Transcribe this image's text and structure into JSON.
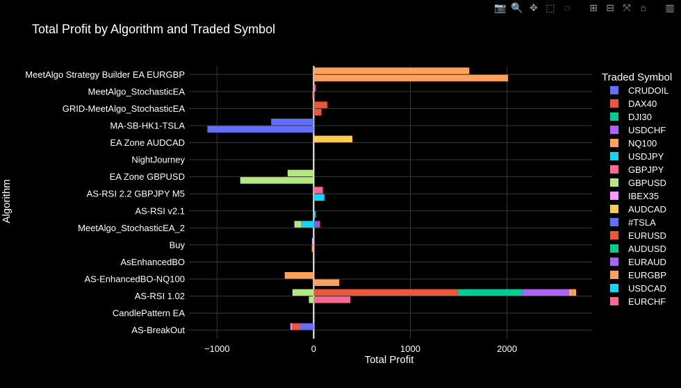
{
  "chart_data": {
    "type": "bar",
    "orientation": "horizontal",
    "barmode": "relative",
    "title": "Total Profit by Algorithm and Traded Symbol",
    "xlabel": "Total Profit",
    "ylabel": "Algorithm",
    "xlim": [
      -1290,
      2880
    ],
    "xticks": [
      -1000,
      0,
      1000,
      2000
    ],
    "xtick_labels": [
      "−1000",
      "0",
      "1000",
      "2000"
    ],
    "grid": true,
    "legend_title": "Traded Symbol",
    "legend_position": "right",
    "categories": [
      "MeetAlgo Strategy Builder EA EURGBP",
      "MeetAlgo_StochasticEA",
      "GRID-MeetAlgo_StochasticEA",
      "MA-SB-HK1-TSLA",
      "EA Zone AUDCAD",
      "NightJourney",
      "EA Zone GBPUSD",
      "AS-RSI 2.2 GBPJPY M5",
      "AS-RSI v2.1",
      "MeetAlgo_StochasticEA_2",
      "Buy",
      "AsEnhancedBO",
      "AS-EnhancedBO-NQ100",
      "AS-RSI 1.02",
      "CandlePattern EA",
      "AS-BreakOut"
    ],
    "series": [
      {
        "name": "CRUDOIL",
        "color": "#636efa",
        "values": [
          [
            0,
            0
          ],
          [
            0,
            0
          ],
          [
            0,
            0
          ],
          [
            0,
            0
          ],
          [
            0,
            0
          ],
          [
            0,
            0
          ],
          [
            0,
            0
          ],
          [
            0,
            0
          ],
          [
            0,
            0
          ],
          [
            0,
            0
          ],
          [
            0,
            0
          ],
          [
            0,
            0
          ],
          [
            0,
            0
          ],
          [
            0,
            0
          ],
          [
            0,
            0
          ],
          [
            -140,
            0
          ]
        ]
      },
      {
        "name": "DAX40",
        "color": "#ef553b",
        "values": [
          [
            0,
            0
          ],
          [
            0,
            -15
          ],
          [
            140,
            80
          ],
          [
            0,
            0
          ],
          [
            0,
            0
          ],
          [
            0,
            0
          ],
          [
            0,
            0
          ],
          [
            0,
            0
          ],
          [
            0,
            0
          ],
          [
            0,
            0
          ],
          [
            0,
            0
          ],
          [
            0,
            0
          ],
          [
            0,
            0
          ],
          [
            1490,
            0
          ],
          [
            0,
            0
          ],
          [
            -85,
            0
          ]
        ]
      },
      {
        "name": "DJI30",
        "color": "#00cc96",
        "values": [
          [
            0,
            0
          ],
          [
            0,
            0
          ],
          [
            0,
            0
          ],
          [
            0,
            0
          ],
          [
            0,
            0
          ],
          [
            0,
            0
          ],
          [
            0,
            0
          ],
          [
            0,
            0
          ],
          [
            0,
            0
          ],
          [
            0,
            0
          ],
          [
            0,
            0
          ],
          [
            0,
            0
          ],
          [
            0,
            0
          ],
          [
            670,
            0
          ],
          [
            0,
            0
          ],
          [
            0,
            0
          ]
        ]
      },
      {
        "name": "USDCHF",
        "color": "#ab63fa",
        "values": [
          [
            0,
            0
          ],
          [
            0,
            0
          ],
          [
            0,
            0
          ],
          [
            0,
            0
          ],
          [
            0,
            0
          ],
          [
            0,
            0
          ],
          [
            0,
            0
          ],
          [
            0,
            0
          ],
          [
            0,
            0
          ],
          [
            0,
            0
          ],
          [
            0,
            0
          ],
          [
            0,
            0
          ],
          [
            0,
            0
          ],
          [
            480,
            0
          ],
          [
            0,
            0
          ],
          [
            0,
            0
          ]
        ]
      },
      {
        "name": "NQ100",
        "color": "#ffa15a",
        "values": [
          [
            1610,
            2010
          ],
          [
            0,
            0
          ],
          [
            0,
            0
          ],
          [
            0,
            0
          ],
          [
            0,
            0
          ],
          [
            0,
            0
          ],
          [
            0,
            0
          ],
          [
            0,
            0
          ],
          [
            0,
            0
          ],
          [
            0,
            0
          ],
          [
            0,
            -20
          ],
          [
            0,
            0
          ],
          [
            -300,
            265
          ],
          [
            40,
            0
          ],
          [
            0,
            0
          ],
          [
            0,
            0
          ]
        ]
      },
      {
        "name": "USDJPY",
        "color": "#19d3f3",
        "values": [
          [
            0,
            0
          ],
          [
            0,
            0
          ],
          [
            0,
            0
          ],
          [
            0,
            0
          ],
          [
            0,
            0
          ],
          [
            0,
            0
          ],
          [
            0,
            0
          ],
          [
            0,
            0
          ],
          [
            0,
            0
          ],
          [
            0,
            0
          ],
          [
            0,
            0
          ],
          [
            0,
            0
          ],
          [
            0,
            0
          ],
          [
            0,
            0
          ],
          [
            0,
            0
          ],
          [
            0,
            0
          ]
        ]
      },
      {
        "name": "GBPJPY",
        "color": "#ff6692",
        "values": [
          [
            0,
            0
          ],
          [
            20,
            0
          ],
          [
            0,
            0
          ],
          [
            0,
            0
          ],
          [
            0,
            0
          ],
          [
            0,
            0
          ],
          [
            0,
            0
          ],
          [
            95,
            0
          ],
          [
            0,
            0
          ],
          [
            0,
            0
          ],
          [
            0,
            0
          ],
          [
            0,
            0
          ],
          [
            0,
            0
          ],
          [
            0,
            0
          ],
          [
            0,
            0
          ],
          [
            0,
            0
          ]
        ]
      },
      {
        "name": "GBPUSD",
        "color": "#b6e880",
        "values": [
          [
            0,
            0
          ],
          [
            0,
            0
          ],
          [
            0,
            0
          ],
          [
            0,
            0
          ],
          [
            0,
            0
          ],
          [
            0,
            0
          ],
          [
            -270,
            -760
          ],
          [
            0,
            0
          ],
          [
            0,
            0
          ],
          [
            0,
            0
          ],
          [
            0,
            0
          ],
          [
            0,
            0
          ],
          [
            0,
            0
          ],
          [
            -220,
            -50
          ],
          [
            0,
            0
          ],
          [
            0,
            0
          ]
        ]
      },
      {
        "name": "IBEX35",
        "color": "#ff97ff",
        "values": [
          [
            0,
            0
          ],
          [
            0,
            0
          ],
          [
            0,
            0
          ],
          [
            0,
            0
          ],
          [
            0,
            0
          ],
          [
            0,
            0
          ],
          [
            0,
            0
          ],
          [
            0,
            0
          ],
          [
            0,
            0
          ],
          [
            0,
            0
          ],
          [
            -18,
            0
          ],
          [
            0,
            0
          ],
          [
            0,
            0
          ],
          [
            0,
            0
          ],
          [
            0,
            0
          ],
          [
            -15,
            0
          ]
        ]
      },
      {
        "name": "AUDCAD",
        "color": "#fecb52",
        "values": [
          [
            0,
            0
          ],
          [
            0,
            0
          ],
          [
            0,
            0
          ],
          [
            0,
            0
          ],
          [
            400,
            0
          ],
          [
            0,
            0
          ],
          [
            0,
            0
          ],
          [
            0,
            0
          ],
          [
            0,
            0
          ],
          [
            0,
            0
          ],
          [
            0,
            0
          ],
          [
            0,
            0
          ],
          [
            0,
            0
          ],
          [
            0,
            0
          ],
          [
            0,
            0
          ],
          [
            0,
            0
          ]
        ]
      },
      {
        "name": "#TSLA",
        "color": "#636efa",
        "values": [
          [
            0,
            0
          ],
          [
            0,
            0
          ],
          [
            0,
            0
          ],
          [
            -440,
            -1100
          ],
          [
            0,
            0
          ],
          [
            0,
            0
          ],
          [
            0,
            0
          ],
          [
            0,
            0
          ],
          [
            0,
            0
          ],
          [
            45,
            0
          ],
          [
            0,
            0
          ],
          [
            0,
            0
          ],
          [
            0,
            0
          ],
          [
            0,
            0
          ],
          [
            0,
            0
          ],
          [
            0,
            0
          ]
        ]
      },
      {
        "name": "EURUSD",
        "color": "#ef553b",
        "values": [
          [
            0,
            0
          ],
          [
            0,
            0
          ],
          [
            0,
            0
          ],
          [
            0,
            0
          ],
          [
            0,
            0
          ],
          [
            0,
            0
          ],
          [
            0,
            0
          ],
          [
            0,
            0
          ],
          [
            0,
            0
          ],
          [
            20,
            0
          ],
          [
            0,
            0
          ],
          [
            0,
            0
          ],
          [
            0,
            0
          ],
          [
            0,
            0
          ],
          [
            0,
            0
          ],
          [
            0,
            0
          ]
        ]
      },
      {
        "name": "AUDUSD",
        "color": "#00cc96",
        "values": [
          [
            0,
            0
          ],
          [
            0,
            0
          ],
          [
            0,
            0
          ],
          [
            0,
            0
          ],
          [
            0,
            0
          ],
          [
            0,
            0
          ],
          [
            0,
            0
          ],
          [
            0,
            0
          ],
          [
            0,
            0
          ],
          [
            0,
            0
          ],
          [
            0,
            0
          ],
          [
            0,
            0
          ],
          [
            0,
            0
          ],
          [
            0,
            0
          ],
          [
            0,
            0
          ],
          [
            0,
            0
          ]
        ]
      },
      {
        "name": "EURAUD",
        "color": "#ab63fa",
        "values": [
          [
            0,
            0
          ],
          [
            0,
            0
          ],
          [
            0,
            0
          ],
          [
            0,
            0
          ],
          [
            0,
            0
          ],
          [
            0,
            0
          ],
          [
            0,
            0
          ],
          [
            0,
            0
          ],
          [
            0,
            0
          ],
          [
            0,
            0
          ],
          [
            0,
            0
          ],
          [
            0,
            0
          ],
          [
            0,
            0
          ],
          [
            0,
            0
          ],
          [
            0,
            0
          ],
          [
            0,
            0
          ]
        ]
      },
      {
        "name": "EURGBP",
        "color": "#ffa15a",
        "values": [
          [
            0,
            0
          ],
          [
            0,
            0
          ],
          [
            0,
            0
          ],
          [
            0,
            0
          ],
          [
            0,
            0
          ],
          [
            0,
            0
          ],
          [
            0,
            0
          ],
          [
            0,
            0
          ],
          [
            0,
            0
          ],
          [
            0,
            0
          ],
          [
            0,
            0
          ],
          [
            0,
            0
          ],
          [
            0,
            0
          ],
          [
            35,
            0
          ],
          [
            0,
            0
          ],
          [
            0,
            0
          ]
        ]
      },
      {
        "name": "USDCAD",
        "color": "#19d3f3",
        "values": [
          [
            0,
            0
          ],
          [
            0,
            0
          ],
          [
            0,
            0
          ],
          [
            0,
            0
          ],
          [
            0,
            0
          ],
          [
            0,
            0
          ],
          [
            0,
            0
          ],
          [
            0,
            110
          ],
          [
            0,
            20
          ],
          [
            -130,
            0
          ],
          [
            0,
            0
          ],
          [
            0,
            0
          ],
          [
            0,
            0
          ],
          [
            0,
            0
          ],
          [
            0,
            0
          ],
          [
            0,
            0
          ]
        ]
      },
      {
        "name": "EURCHF",
        "color": "#ff6692",
        "values": [
          [
            0,
            0
          ],
          [
            0,
            0
          ],
          [
            0,
            0
          ],
          [
            0,
            0
          ],
          [
            0,
            0
          ],
          [
            0,
            0
          ],
          [
            0,
            0
          ],
          [
            0,
            0
          ],
          [
            0,
            0
          ],
          [
            0,
            0
          ],
          [
            0,
            0
          ],
          [
            0,
            0
          ],
          [
            0,
            0
          ],
          [
            0,
            380
          ],
          [
            0,
            0
          ],
          [
            0,
            0
          ]
        ]
      }
    ],
    "extra_segments": [
      {
        "category_index": 9,
        "subbar": 0,
        "value": -70,
        "color": "#b6e880"
      }
    ]
  },
  "modebar": {
    "buttons": [
      {
        "name": "camera-icon",
        "glyph": "📷"
      },
      {
        "name": "zoom-icon",
        "glyph": "🔍"
      },
      {
        "name": "pan-icon",
        "glyph": "✥"
      },
      {
        "name": "box-select-icon",
        "glyph": "⬚"
      },
      {
        "name": "lasso-select-icon",
        "glyph": "◌"
      },
      {
        "name": "zoom-in-icon",
        "glyph": "⊞"
      },
      {
        "name": "zoom-out-icon",
        "glyph": "⊟"
      },
      {
        "name": "autoscale-icon",
        "glyph": "⤧"
      },
      {
        "name": "reset-axes-icon",
        "glyph": "⌂"
      },
      {
        "name": "plotly-logo-icon",
        "glyph": "▥"
      }
    ]
  }
}
